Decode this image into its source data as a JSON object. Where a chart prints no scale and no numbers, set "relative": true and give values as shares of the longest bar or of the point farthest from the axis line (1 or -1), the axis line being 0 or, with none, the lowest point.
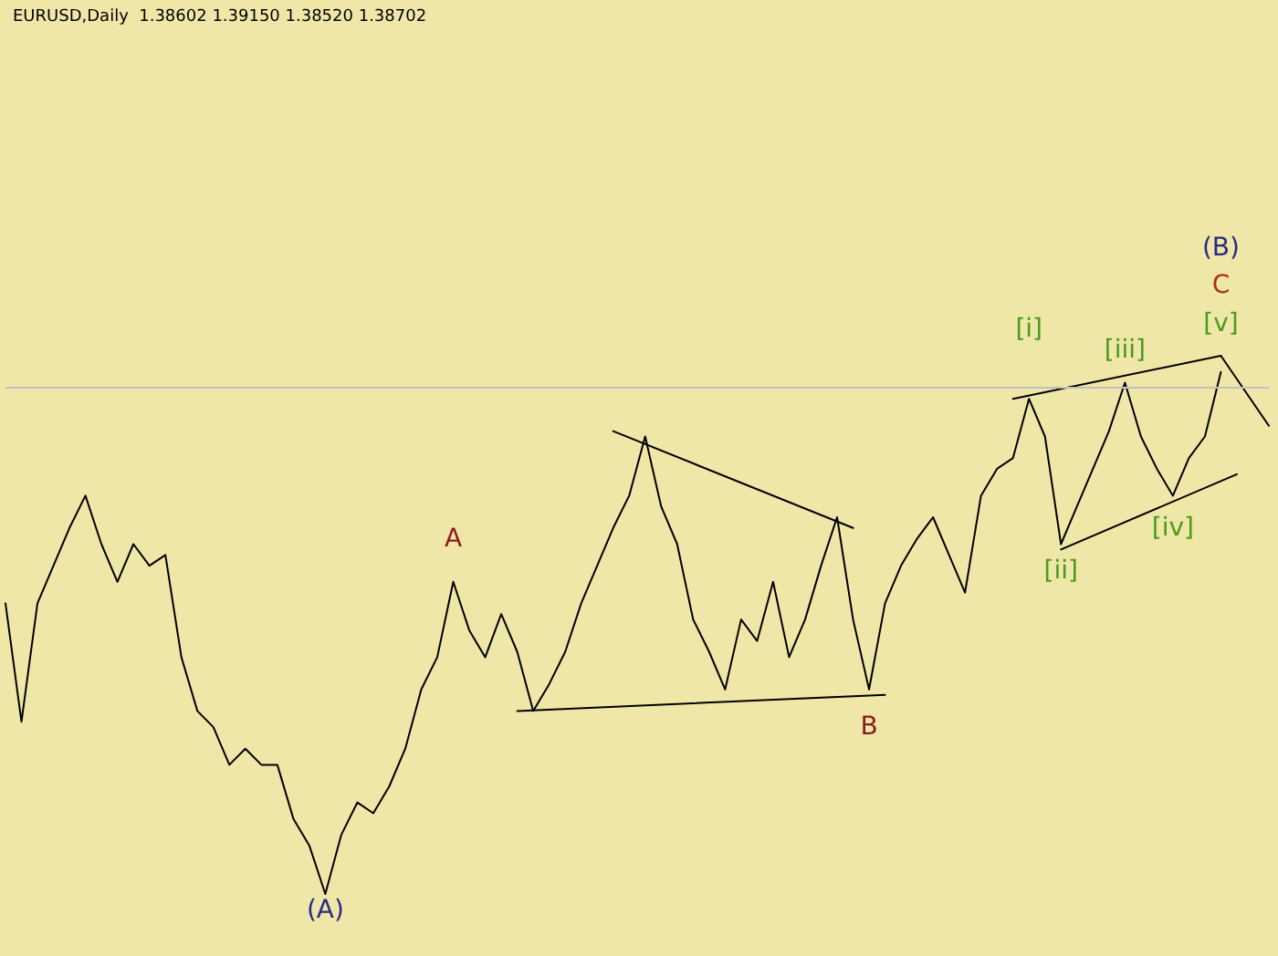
{
  "chart_data": {
    "type": "line",
    "relative": true,
    "title": "EURUSD,Daily  1.38602 1.39150 1.38520 1.38702",
    "grid": false,
    "marker": "none",
    "line_style": "solid",
    "categories": [
      null,
      null,
      null,
      null,
      null,
      null,
      null,
      null,
      null,
      null,
      null,
      null,
      null,
      null,
      null,
      null,
      null,
      null,
      null,
      null,
      null,
      null,
      null,
      null,
      null,
      null,
      null,
      null,
      null,
      null,
      null,
      null,
      null,
      null,
      null,
      null,
      null,
      null,
      null,
      null,
      null,
      null,
      null,
      null,
      null,
      null,
      null,
      null,
      null,
      null,
      null,
      null,
      null,
      null,
      null,
      null,
      null,
      null,
      null,
      null,
      null,
      null,
      null,
      null,
      null,
      null,
      null,
      null,
      null,
      null,
      null,
      null,
      null,
      null,
      null,
      null,
      null,
      null,
      null,
      null
    ],
    "series": [
      {
        "color": "#000000",
        "values": [
          0.54,
          0.32,
          0.54,
          0.61,
          0.68,
          0.74,
          0.65,
          0.58,
          0.65,
          0.61,
          0.63,
          0.44,
          0.34,
          0.31,
          0.24,
          0.27,
          0.24,
          0.24,
          0.14,
          0.09,
          0,
          0.11,
          0.17,
          0.15,
          0.2,
          0.27,
          0.38,
          0.44,
          0.58,
          0.49,
          0.44,
          0.52,
          0.45,
          0.34,
          0.39,
          0.45,
          0.54,
          0.61,
          0.68,
          0.74,
          0.85,
          0.72,
          0.65,
          0.51,
          0.45,
          0.38,
          0.51,
          0.47,
          0.58,
          0.44,
          0.51,
          0.61,
          0.7,
          0.51,
          0.38,
          0.54,
          0.61,
          0.66,
          0.7,
          0.63,
          0.56,
          0.74,
          0.79,
          0.81,
          0.92,
          0.85,
          0.65,
          0.72,
          0.79,
          0.86,
          0.95,
          0.85,
          0.79,
          0.74,
          0.81,
          0.85,
          0.97,
          null,
          null,
          null
        ]
      },
      {
        "color": "#000000",
        "values": [
          null,
          null,
          null,
          null,
          null,
          null,
          null,
          null,
          null,
          null,
          null,
          null,
          null,
          null,
          null,
          null,
          null,
          null,
          null,
          null,
          null,
          null,
          null,
          null,
          null,
          null,
          null,
          null,
          null,
          null,
          null,
          null,
          0.34,
          null,
          null,
          null,
          null,
          null,
          null,
          null,
          null,
          null,
          null,
          null,
          null,
          null,
          null,
          null,
          null,
          null,
          null,
          null,
          null,
          null,
          null,
          0.37,
          null,
          null,
          null,
          null,
          null,
          null,
          null,
          null,
          null,
          null,
          null,
          null,
          null,
          null,
          null,
          null,
          null,
          null,
          null,
          null,
          null,
          null,
          null,
          null
        ]
      },
      {
        "color": "#000000",
        "values": [
          null,
          null,
          null,
          null,
          null,
          null,
          null,
          null,
          null,
          null,
          null,
          null,
          null,
          null,
          null,
          null,
          null,
          null,
          null,
          null,
          null,
          null,
          null,
          null,
          null,
          null,
          null,
          null,
          null,
          null,
          null,
          null,
          null,
          null,
          null,
          null,
          null,
          null,
          0.86,
          null,
          null,
          null,
          null,
          null,
          null,
          null,
          null,
          null,
          null,
          null,
          null,
          null,
          null,
          0.68,
          null,
          null,
          null,
          null,
          null,
          null,
          null,
          null,
          null,
          null,
          null,
          null,
          null,
          null,
          null,
          null,
          null,
          null,
          null,
          null,
          null,
          null,
          null,
          null,
          null,
          null
        ]
      },
      {
        "color": "#000000",
        "values": [
          null,
          null,
          null,
          null,
          null,
          null,
          null,
          null,
          null,
          null,
          null,
          null,
          null,
          null,
          null,
          null,
          null,
          null,
          null,
          null,
          null,
          null,
          null,
          null,
          null,
          null,
          null,
          null,
          null,
          null,
          null,
          null,
          null,
          null,
          null,
          null,
          null,
          null,
          null,
          null,
          null,
          null,
          null,
          null,
          null,
          null,
          null,
          null,
          null,
          null,
          null,
          null,
          null,
          null,
          null,
          null,
          null,
          null,
          null,
          null,
          null,
          null,
          null,
          0.92,
          null,
          null,
          null,
          null,
          null,
          null,
          null,
          null,
          null,
          null,
          null,
          null,
          1,
          null,
          null,
          null
        ]
      },
      {
        "color": "#000000",
        "values": [
          null,
          null,
          null,
          null,
          null,
          null,
          null,
          null,
          null,
          null,
          null,
          null,
          null,
          null,
          null,
          null,
          null,
          null,
          null,
          null,
          null,
          null,
          null,
          null,
          null,
          null,
          null,
          null,
          null,
          null,
          null,
          null,
          null,
          null,
          null,
          null,
          null,
          null,
          null,
          null,
          null,
          null,
          null,
          null,
          null,
          null,
          null,
          null,
          null,
          null,
          null,
          null,
          null,
          null,
          null,
          null,
          null,
          null,
          null,
          null,
          null,
          null,
          null,
          null,
          null,
          null,
          0.64,
          null,
          null,
          null,
          null,
          null,
          null,
          null,
          null,
          null,
          null,
          0.78,
          null,
          null
        ]
      },
      {
        "color": "#000000",
        "values": [
          null,
          null,
          null,
          null,
          null,
          null,
          null,
          null,
          null,
          null,
          null,
          null,
          null,
          null,
          null,
          null,
          null,
          null,
          null,
          null,
          null,
          null,
          null,
          null,
          null,
          null,
          null,
          null,
          null,
          null,
          null,
          null,
          null,
          null,
          null,
          null,
          null,
          null,
          null,
          null,
          null,
          null,
          null,
          null,
          null,
          null,
          null,
          null,
          null,
          null,
          null,
          null,
          null,
          null,
          null,
          null,
          null,
          null,
          null,
          null,
          null,
          null,
          null,
          null,
          null,
          null,
          null,
          null,
          null,
          null,
          null,
          null,
          null,
          null,
          null,
          null,
          1,
          null,
          null,
          0.87
        ]
      }
    ],
    "ref_lines": [
      {
        "axis": "y",
        "value": 0.94,
        "color": "#c0c0c0"
      }
    ],
    "annotations": [
      "(A)",
      "A",
      "B",
      "(B)",
      "C",
      "[v]",
      "[i]",
      "[iii]",
      "[ii]",
      "[iv]"
    ]
  }
}
